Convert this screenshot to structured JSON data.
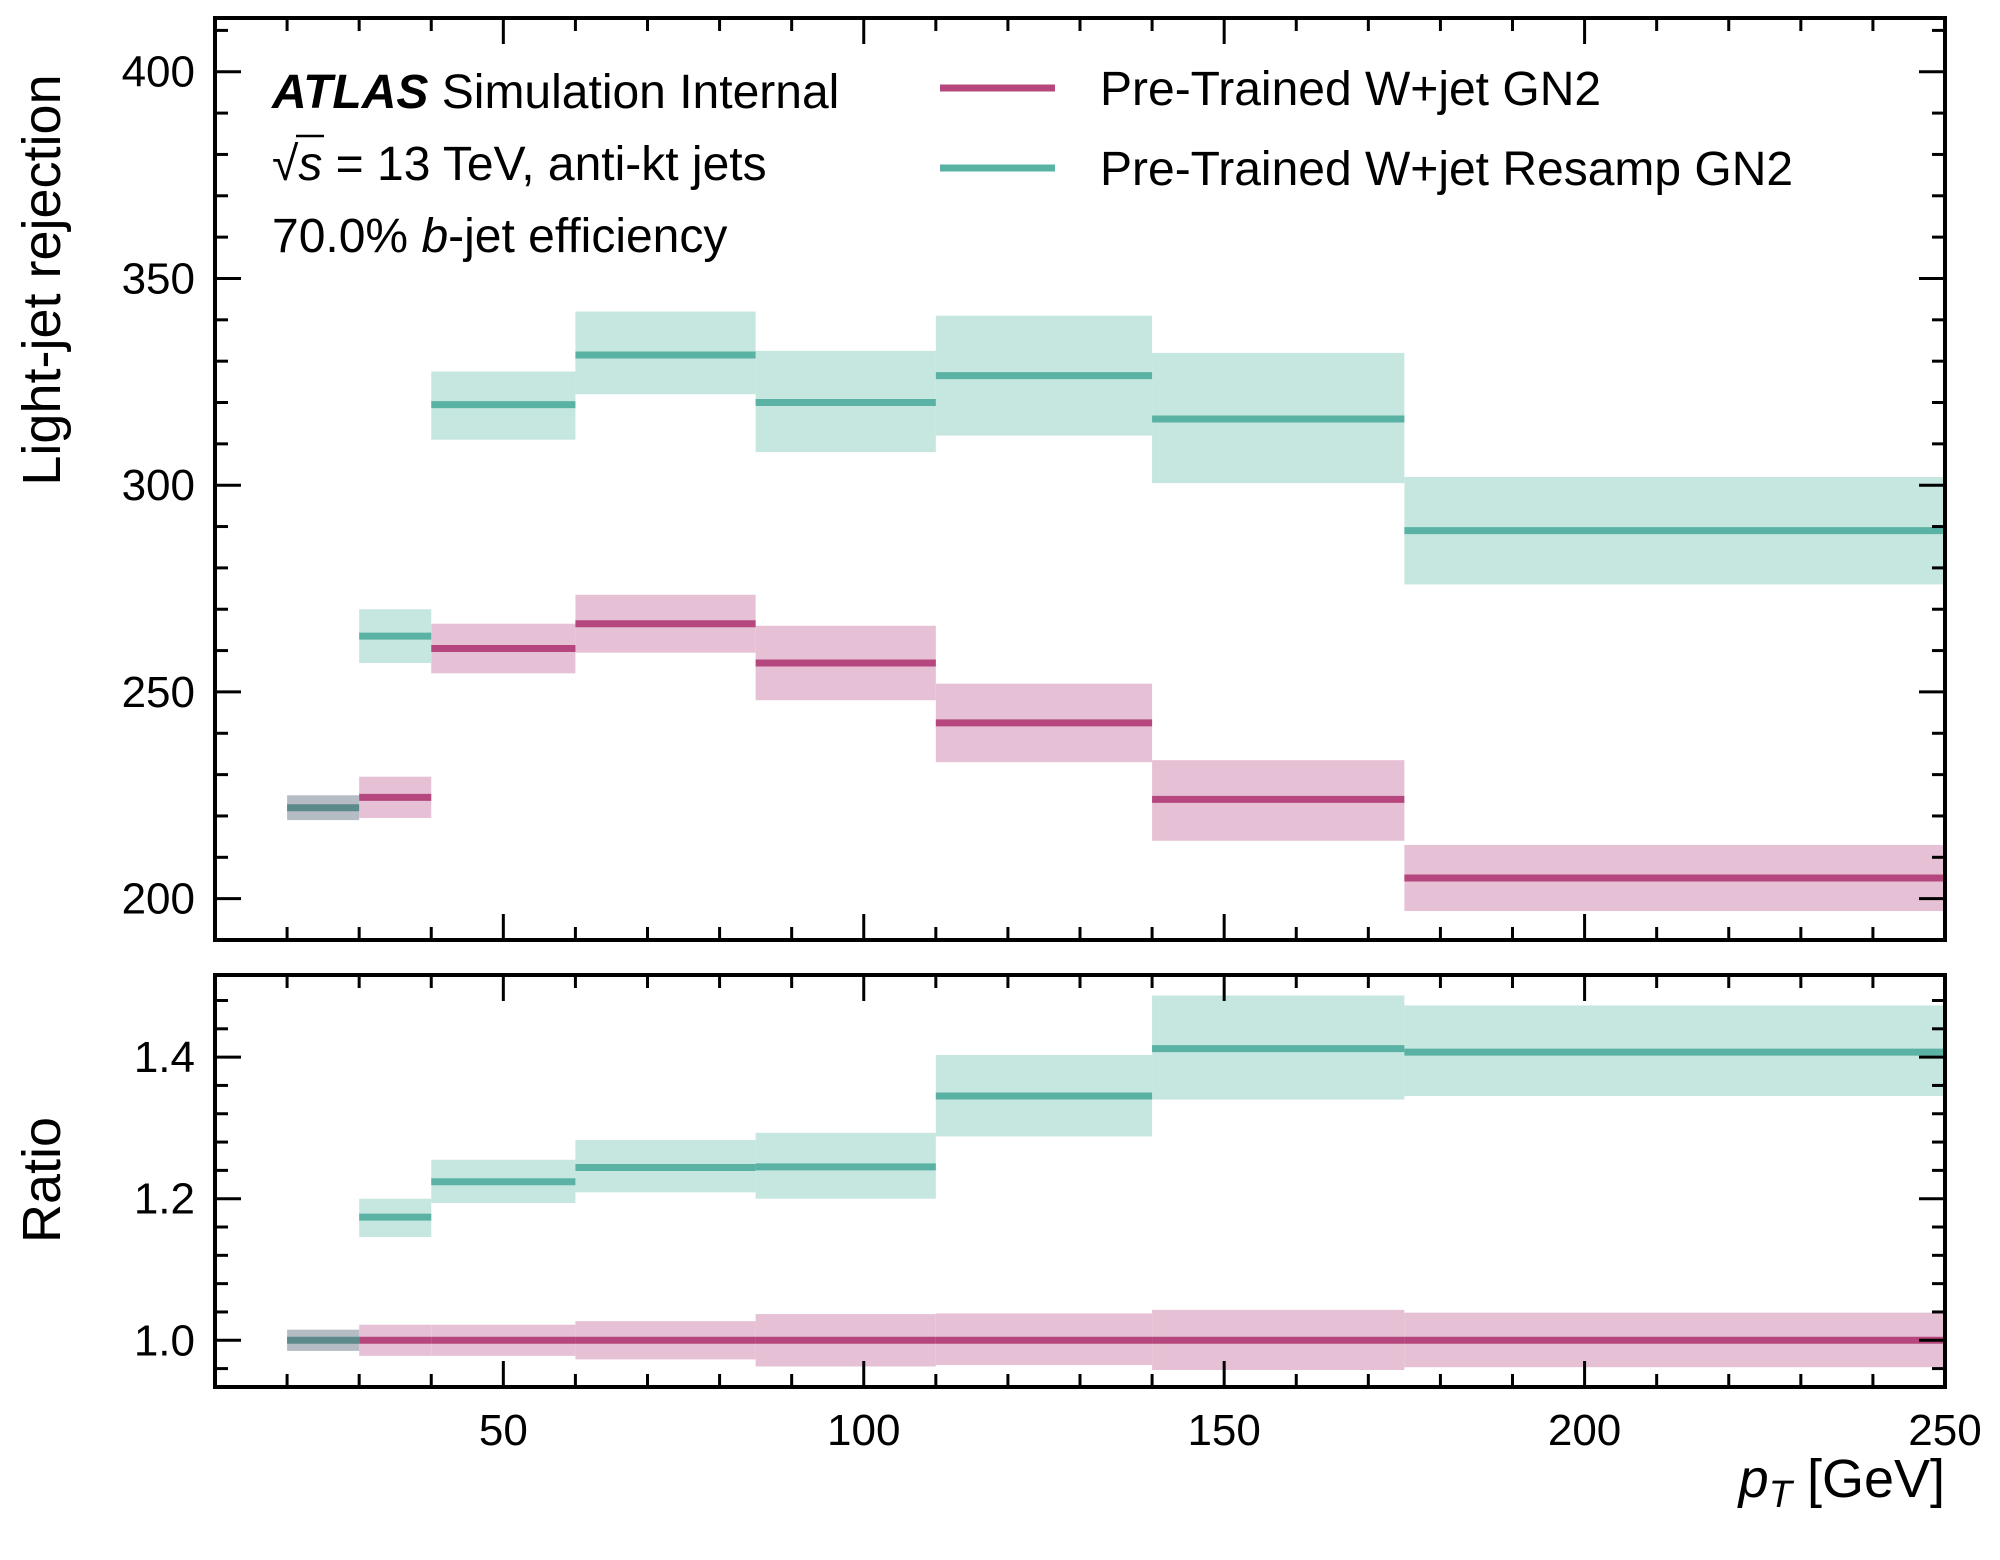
{
  "chart_data": [
    {
      "type": "step-band",
      "panel": "main",
      "ylabel": "Light-jet rejection",
      "xlim": [
        10,
        250
      ],
      "ylim": [
        190,
        413
      ],
      "yticks": [
        200,
        250,
        300,
        350,
        400
      ],
      "bin_edges": [
        20,
        30,
        40,
        60,
        85,
        110,
        140,
        175,
        250
      ],
      "series": [
        {
          "name": "Pre-Trained W+jet GN2",
          "color": "#b5477e",
          "band_color": "#e6c1d5",
          "values": [
            222,
            224.5,
            260.5,
            266.5,
            257,
            242.5,
            224,
            205
          ],
          "lower": [
            219,
            219.5,
            254.5,
            259.5,
            248,
            233,
            214,
            197
          ],
          "upper": [
            225,
            229.5,
            266.5,
            273.5,
            266,
            252,
            233.5,
            213
          ]
        },
        {
          "name": "Pre-Trained W+jet Resamp GN2",
          "color": "#5ab2a4",
          "band_color": "#c6e6e0",
          "values": [
            222,
            263.5,
            319.5,
            331.5,
            320,
            326.5,
            316,
            289
          ],
          "lower": [
            219,
            257,
            311,
            322,
            308,
            312,
            300.5,
            276
          ],
          "upper": [
            225,
            270,
            327.5,
            342,
            332.5,
            341,
            332,
            302
          ]
        }
      ],
      "first_bin_overlap_color": "#5c8a8a",
      "first_bin_overlap_band": "#b5bcc4"
    },
    {
      "type": "step-band",
      "panel": "ratio",
      "ylabel": "Ratio",
      "xlabel_main": "p",
      "xlabel_sub": "T",
      "xlabel_unit": " [GeV]",
      "xlim": [
        10,
        250
      ],
      "ylim": [
        0.934,
        1.516
      ],
      "yticks": [
        1.0,
        1.2,
        1.4
      ],
      "ytick_labels": [
        "1.0",
        "1.2",
        "1.4"
      ],
      "xticks": [
        50,
        100,
        150,
        200,
        250
      ],
      "bin_edges": [
        20,
        30,
        40,
        60,
        85,
        110,
        140,
        175,
        250
      ],
      "series": [
        {
          "name": "Pre-Trained W+jet GN2",
          "color": "#b5477e",
          "band_color": "#e6c1d5",
          "values": [
            1.0,
            1.0,
            1.0,
            1.0,
            1.0,
            1.0,
            1.0,
            1.0
          ],
          "lower": [
            0.985,
            0.978,
            0.978,
            0.973,
            0.963,
            0.965,
            0.958,
            0.962
          ],
          "upper": [
            1.015,
            1.022,
            1.022,
            1.027,
            1.037,
            1.038,
            1.043,
            1.039
          ]
        },
        {
          "name": "Pre-Trained W+jet Resamp GN2",
          "color": "#5ab2a4",
          "band_color": "#c6e6e0",
          "values": [
            1.0,
            1.174,
            1.224,
            1.244,
            1.245,
            1.345,
            1.412,
            1.407
          ],
          "lower": [
            0.985,
            1.146,
            1.194,
            1.209,
            1.2,
            1.288,
            1.34,
            1.345
          ],
          "upper": [
            1.015,
            1.2,
            1.255,
            1.283,
            1.293,
            1.403,
            1.487,
            1.473
          ]
        }
      ],
      "first_bin_overlap_color": "#5c8a8a",
      "first_bin_overlap_band": "#b5bcc4"
    }
  ],
  "annotations": {
    "experiment": "ATLAS",
    "status": "Simulation Internal",
    "energy_sqrt": "√",
    "energy_s": "s",
    "energy_rest": " = 13 TeV, anti-kt jets",
    "efficiency_pre": "70.0% ",
    "efficiency_b": "b",
    "efficiency_post": "-jet efficiency"
  },
  "legend": [
    {
      "label": "Pre-Trained W+jet GN2",
      "color": "#b5477e"
    },
    {
      "label": "Pre-Trained W+jet Resamp GN2",
      "color": "#5ab2a4"
    }
  ]
}
